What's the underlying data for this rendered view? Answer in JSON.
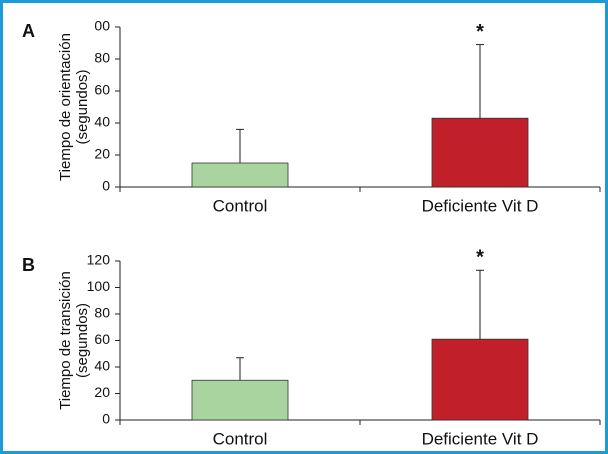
{
  "chart_data": [
    {
      "type": "bar",
      "label": "A",
      "ylabel": [
        "Tiempo de orientación",
        "(segundos)"
      ],
      "categories": [
        "Control",
        "Deficiente Vit D"
      ],
      "values": [
        15,
        43
      ],
      "errors": [
        21,
        46
      ],
      "colors": [
        "#a9d4a0",
        "#c1202b"
      ],
      "ylim": [
        0,
        100
      ],
      "yticks": [
        0,
        20,
        40,
        60,
        80,
        {
          "value": 100,
          "label": "00"
        }
      ],
      "annotations": [
        {
          "x": "Deficiente Vit D",
          "text": "*"
        }
      ]
    },
    {
      "type": "bar",
      "label": "B",
      "ylabel": [
        "Tiempo de transición",
        "(segundos)"
      ],
      "categories": [
        "Control",
        "Deficiente Vit D"
      ],
      "values": [
        30,
        61
      ],
      "errors": [
        17,
        52
      ],
      "colors": [
        "#a9d4a0",
        "#c1202b"
      ],
      "ylim": [
        0,
        120
      ],
      "yticks": [
        0,
        20,
        40,
        60,
        80,
        100,
        120
      ],
      "annotations": [
        {
          "x": "Deficiente Vit D",
          "text": "*"
        }
      ]
    }
  ]
}
